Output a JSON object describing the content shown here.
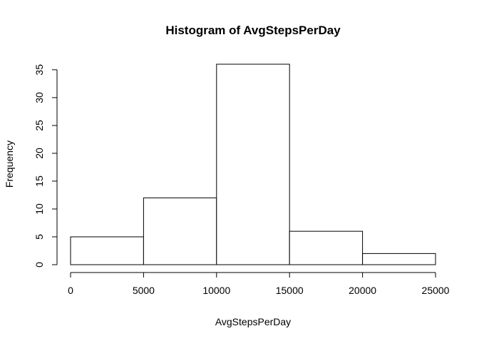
{
  "chart_data": {
    "type": "bar",
    "title": "Histogram of AvgStepsPerDay",
    "xlabel": "AvgStepsPerDay",
    "ylabel": "Frequency",
    "bins": [
      {
        "start": 0,
        "end": 5000,
        "count": 5
      },
      {
        "start": 5000,
        "end": 10000,
        "count": 12
      },
      {
        "start": 10000,
        "end": 15000,
        "count": 36
      },
      {
        "start": 15000,
        "end": 20000,
        "count": 6
      },
      {
        "start": 20000,
        "end": 25000,
        "count": 2
      }
    ],
    "xlim": [
      0,
      25000
    ],
    "ylim": [
      0,
      36
    ],
    "x_ticks": [
      0,
      5000,
      10000,
      15000,
      20000,
      25000
    ],
    "x_tick_labels": [
      "0",
      "5000",
      "10000",
      "15000",
      "20000",
      "25000"
    ],
    "y_ticks": [
      0,
      5,
      10,
      15,
      20,
      25,
      30,
      35
    ],
    "y_tick_labels": [
      "0",
      "5",
      "10",
      "15",
      "20",
      "25",
      "30",
      "35"
    ],
    "grid": false,
    "legend": "none",
    "bar_fill": "#ffffff",
    "bar_stroke": "#000000"
  }
}
